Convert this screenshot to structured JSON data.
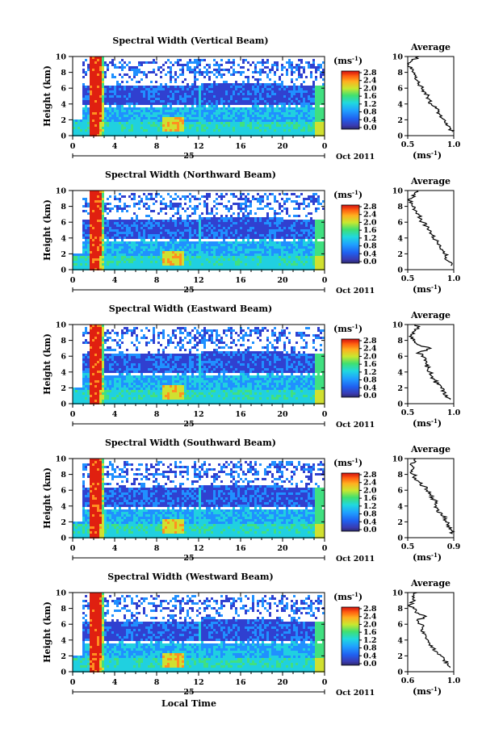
{
  "chart_data": [
    {
      "type": "heatmap",
      "title": "Spectral Width (Vertical Beam)",
      "ylabel": "Height (km)",
      "xticks": [
        "0",
        "4",
        "8",
        "12",
        "16",
        "20",
        "0"
      ],
      "yticks": [
        "0",
        "2",
        "4",
        "6",
        "8",
        "10"
      ],
      "date_day": "25",
      "date_month_year": "Oct 2011",
      "colorbar_unit": "(ms",
      "colorbar_unit_sup": "-1",
      "colorbar_unit_close": ")",
      "colorbar_ticks": [
        "0.0",
        "0.4",
        "0.8",
        "1.2",
        "1.6",
        "2.0",
        "2.4",
        "2.8"
      ],
      "average": {
        "title": "Average",
        "xticks": [
          "0.5",
          "1.0"
        ],
        "xlim": [
          0.5,
          1.0
        ],
        "heights": [
          0.5,
          1,
          1.5,
          2,
          2.5,
          3,
          3.5,
          4,
          4.5,
          5,
          5.5,
          6,
          6.5,
          7,
          7.5,
          8,
          8.5,
          9,
          9.5,
          10
        ],
        "values": [
          0.98,
          0.96,
          0.93,
          0.9,
          0.87,
          0.84,
          0.8,
          0.76,
          0.74,
          0.72,
          0.69,
          0.65,
          0.62,
          0.6,
          0.58,
          0.56,
          0.53,
          0.51,
          0.55,
          0.62
        ]
      }
    },
    {
      "type": "heatmap",
      "title": "Spectral Width (Northward Beam)",
      "ylabel": "Height (km)",
      "xticks": [
        "0",
        "4",
        "8",
        "12",
        "16",
        "20",
        "0"
      ],
      "yticks": [
        "0",
        "2",
        "4",
        "6",
        "8",
        "10"
      ],
      "date_day": "25",
      "date_month_year": "Oct 2011",
      "colorbar_unit": "(ms",
      "colorbar_unit_sup": "-1",
      "colorbar_unit_close": ")",
      "colorbar_ticks": [
        "0.0",
        "0.4",
        "0.8",
        "1.2",
        "1.6",
        "2.0",
        "2.4",
        "2.8"
      ],
      "average": {
        "title": "Average",
        "xticks": [
          "0.5",
          "1.0"
        ],
        "xlim": [
          0.5,
          1.0
        ],
        "heights": [
          0.5,
          1,
          1.5,
          2,
          2.5,
          3,
          3.5,
          4,
          4.5,
          5,
          5.5,
          6,
          6.5,
          7,
          7.5,
          8,
          8.5,
          9,
          9.5,
          10
        ],
        "values": [
          0.97,
          0.95,
          0.92,
          0.9,
          0.88,
          0.86,
          0.82,
          0.78,
          0.76,
          0.73,
          0.7,
          0.66,
          0.63,
          0.62,
          0.58,
          0.55,
          0.52,
          0.54,
          0.58,
          0.6
        ]
      }
    },
    {
      "type": "heatmap",
      "title": "Spectral Width (Eastward Beam)",
      "ylabel": "Height (km)",
      "xticks": [
        "0",
        "4",
        "8",
        "12",
        "16",
        "20",
        "0"
      ],
      "yticks": [
        "0",
        "2",
        "4",
        "6",
        "8",
        "10"
      ],
      "date_day": "25",
      "date_month_year": "Oct 2011",
      "colorbar_unit": "(ms",
      "colorbar_unit_sup": "-1",
      "colorbar_unit_close": ")",
      "colorbar_ticks": [
        "0.0",
        "0.4",
        "0.8",
        "1.2",
        "1.6",
        "2.0",
        "2.4",
        "2.8"
      ],
      "average": {
        "title": "Average",
        "xticks": [
          "0.5",
          "1.0"
        ],
        "xlim": [
          0.5,
          1.0
        ],
        "heights": [
          0.5,
          1,
          1.5,
          2,
          2.5,
          3,
          3.5,
          4,
          4.5,
          5,
          5.5,
          6,
          6.5,
          7,
          7.5,
          8,
          8.5,
          9,
          9.5,
          10
        ],
        "values": [
          0.96,
          0.93,
          0.9,
          0.86,
          0.82,
          0.79,
          0.76,
          0.74,
          0.72,
          0.7,
          0.68,
          0.65,
          0.62,
          0.75,
          0.6,
          0.56,
          0.52,
          0.55,
          0.62,
          0.58
        ]
      }
    },
    {
      "type": "heatmap",
      "title": "Spectral Width (Southward Beam)",
      "ylabel": "Height (km)",
      "xticks": [
        "0",
        "4",
        "8",
        "12",
        "16",
        "20",
        "0"
      ],
      "yticks": [
        "0",
        "2",
        "4",
        "6",
        "8",
        "10"
      ],
      "date_day": "25",
      "date_month_year": "Oct 2011",
      "colorbar_unit": "(ms",
      "colorbar_unit_sup": "-1",
      "colorbar_unit_close": ")",
      "colorbar_ticks": [
        "0.0",
        "0.4",
        "0.8",
        "1.2",
        "1.6",
        "2.0",
        "2.4",
        "2.8"
      ],
      "average": {
        "title": "Average",
        "xticks": [
          "0.5",
          "0.9"
        ],
        "xlim": [
          0.5,
          0.9
        ],
        "heights": [
          0.5,
          1,
          1.5,
          2,
          2.5,
          3,
          3.5,
          4,
          4.5,
          5,
          5.5,
          6,
          6.5,
          7,
          7.5,
          8,
          8.5,
          9,
          9.5,
          10
        ],
        "values": [
          0.89,
          0.88,
          0.86,
          0.83,
          0.81,
          0.8,
          0.77,
          0.75,
          0.74,
          0.72,
          0.7,
          0.67,
          0.64,
          0.6,
          0.57,
          0.55,
          0.53,
          0.54,
          0.56,
          0.57
        ]
      }
    },
    {
      "type": "heatmap",
      "title": "Spectral Width (Westward Beam)",
      "ylabel": "Height (km)",
      "xticks": [
        "0",
        "4",
        "8",
        "12",
        "16",
        "20",
        "0"
      ],
      "yticks": [
        "0",
        "2",
        "4",
        "6",
        "8",
        "10"
      ],
      "date_day": "25",
      "date_month_year": "Oct 2011",
      "xlabel": "Local Time",
      "colorbar_unit": "(ms",
      "colorbar_unit_sup": "-1",
      "colorbar_unit_close": ")",
      "colorbar_ticks": [
        "0.0",
        "0.4",
        "0.8",
        "1.2",
        "1.6",
        "2.0",
        "2.4",
        "2.8"
      ],
      "average": {
        "title": "Average",
        "xticks": [
          "0.6",
          "1.0"
        ],
        "xlim": [
          0.5,
          1.0
        ],
        "heights": [
          0.5,
          1,
          1.5,
          2,
          2.5,
          3,
          3.5,
          4,
          4.5,
          5,
          5.5,
          6,
          6.5,
          7,
          7.5,
          8,
          8.5,
          9,
          9.5,
          10
        ],
        "values": [
          0.96,
          0.94,
          0.9,
          0.86,
          0.82,
          0.78,
          0.74,
          0.72,
          0.7,
          0.68,
          0.66,
          0.64,
          0.6,
          0.7,
          0.58,
          0.56,
          0.53,
          0.58,
          0.55,
          0.6
        ]
      }
    }
  ],
  "colors": {
    "colorscale": [
      "#2a2a6a",
      "#3040d0",
      "#2090ff",
      "#20d0e0",
      "#40e080",
      "#d0e030",
      "#ff9020",
      "#e02010"
    ],
    "axis": "#000000",
    "background": "#ffffff"
  }
}
